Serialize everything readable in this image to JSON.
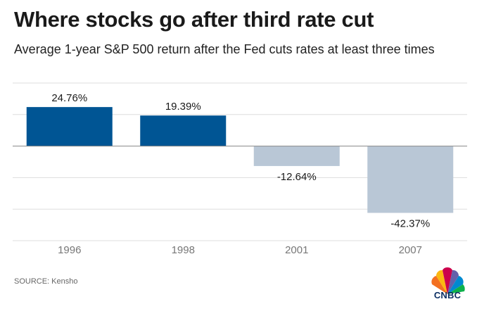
{
  "header": {
    "title": "Where stocks go after third rate cut",
    "subtitle": "Average 1-year S&P 500 return after the Fed cuts rates at least three times"
  },
  "chart_data": {
    "type": "bar",
    "title": "Where stocks go after third rate cut",
    "subtitle": "Average 1-year S&P 500 return after the Fed cuts rates at least three times",
    "categories": [
      "1996",
      "1998",
      "2001",
      "2007"
    ],
    "values": [
      24.76,
      19.39,
      -12.64,
      -42.37
    ],
    "data_labels": [
      "24.76%",
      "19.39%",
      "-12.64%",
      "-42.37%"
    ],
    "ylim": [
      -60,
      40
    ],
    "gridlines": [
      -60,
      -40,
      -20,
      0,
      20,
      40
    ],
    "grid": true,
    "xlabel": "",
    "ylabel": "",
    "colors": {
      "positive": "#005594",
      "negative": "#b9c7d6",
      "grid": "#dddddd",
      "axis": "#888888"
    }
  },
  "footer": {
    "source": "SOURCE: Kensho",
    "logo_text": "CNBC"
  }
}
